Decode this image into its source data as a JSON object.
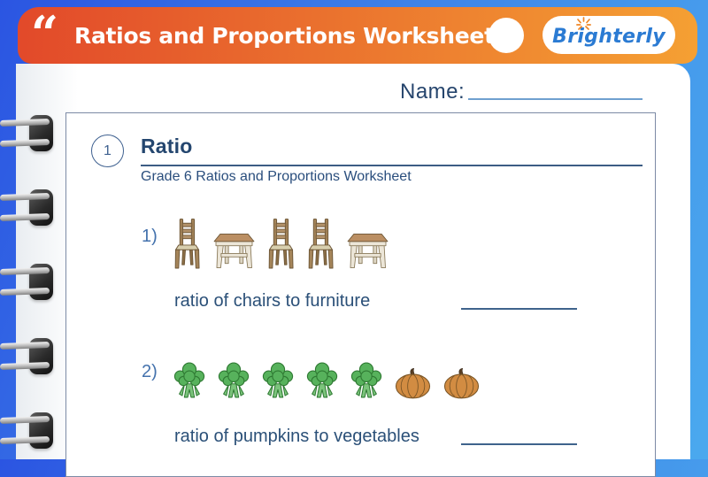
{
  "header": {
    "quote_glyph": "“",
    "title": "Ratios and Proportions Worksheets",
    "brand_name": "Brighterly",
    "colors": {
      "bar_gradient_left": "#e2492a",
      "bar_gradient_right": "#f5a033",
      "brand_blue": "#2b7bd3",
      "brand_sun_orange": "#ef8626"
    }
  },
  "worksheet": {
    "name_label": "Name:",
    "section": {
      "number": "1",
      "title": "Ratio",
      "subtitle": "Grade 6 Ratios and Proportions Worksheet"
    },
    "questions": [
      {
        "number": "1)",
        "icons": [
          "chair",
          "table",
          "chair",
          "chair",
          "table"
        ],
        "prompt": "ratio of chairs to furniture"
      },
      {
        "number": "2)",
        "icons": [
          "broccoli",
          "broccoli",
          "broccoli",
          "broccoli",
          "broccoli",
          "pumpkin",
          "pumpkin"
        ],
        "prompt": "ratio of pumpkins to vegetables"
      }
    ]
  },
  "colors": {
    "background_left": "#2b55e2",
    "background_right": "#4aa9ee",
    "page_white": "#ffffff",
    "text_navy": "#24466f",
    "question_number_blue": "#4472ad",
    "answer_line_blue": "#3f638c",
    "frame_border": "#7c8aa5"
  }
}
